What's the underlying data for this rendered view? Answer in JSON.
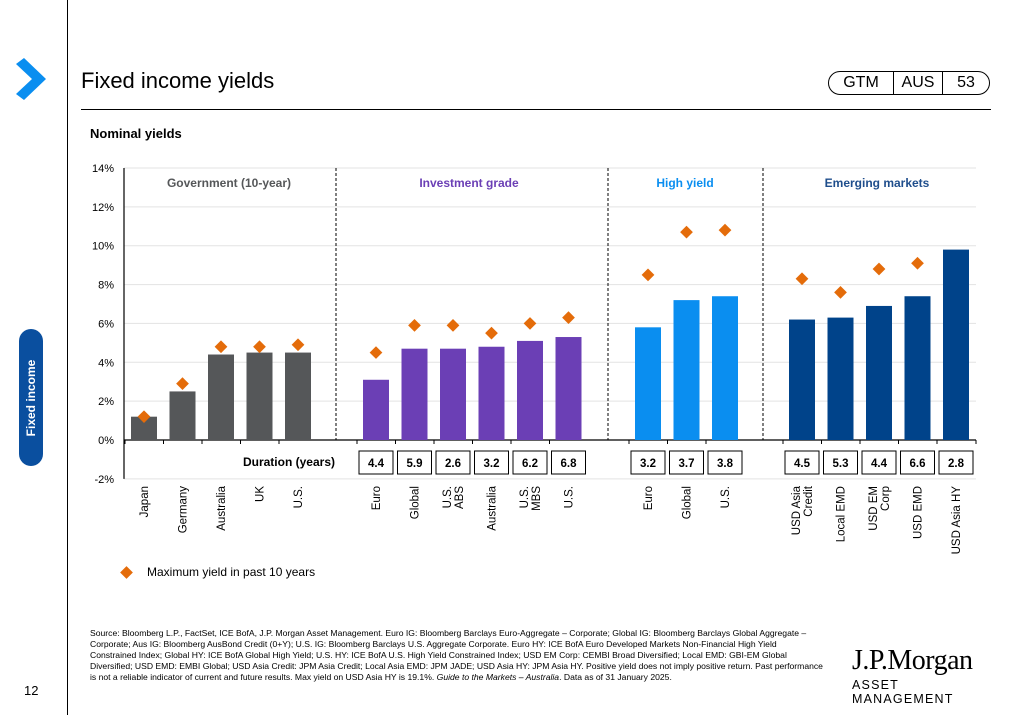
{
  "page": {
    "title": "Fixed income yields",
    "badge": [
      "GTM",
      "AUS",
      "53"
    ],
    "side_tab": "Fixed income",
    "page_number": "12",
    "subtitle": "Nominal yields",
    "logo_line1": "J.P.Morgan",
    "logo_line2": "ASSET MANAGEMENT",
    "footnote": "Source: Bloomberg L.P., FactSet, ICE BofA, J.P. Morgan Asset Management. Euro IG: Bloomberg Barclays Euro-Aggregate – Corporate; Global IG: Bloomberg Barclays Global Aggregate – Corporate; Aus IG: Bloomberg AusBond Credit (0+Y); U.S. IG: Bloomberg Barclays U.S. Aggregate Corporate. Euro HY: ICE BofA Euro Developed Markets Non-Financial High Yield Constrained Index; Global HY: ICE BofA Global High Yield; U.S. HY: ICE BofA U.S. High Yield Constrained Index; USD EM Corp: CEMBI Broad Diversified; Local EMD: GBI-EM Global Diversified; USD EMD: EMBI Global; USD Asia Credit: JPM Asia Credit; Local Asia EMD: JPM JADE; USD Asia HY: JPM Asia HY. Positive yield does not imply positive return. Past performance is not a reliable indicator of current and future results. Max yield on USD Asia HY is 19.1%.",
    "footnote_italic": "Guide to the Markets – Australia",
    "footnote_end": ". Data as of 31 January 2025."
  },
  "chart_data": {
    "type": "bar",
    "title": "Nominal yields",
    "ylabel": "",
    "ylim": [
      -2,
      14
    ],
    "yticks": [
      "-2%",
      "0%",
      "2%",
      "4%",
      "6%",
      "8%",
      "10%",
      "12%",
      "14%"
    ],
    "ytick_values": [
      -2,
      0,
      2,
      4,
      6,
      8,
      10,
      12,
      14
    ],
    "grid": true,
    "duration_label": "Duration (years)",
    "legend": {
      "marker": "diamond",
      "label": "Maximum yield in past 10 years",
      "position": "bottom-left"
    },
    "colors": {
      "government": "#555759",
      "investment_grade": "#6b3fb5",
      "high_yield": "#0a8ef0",
      "emerging_markets": "#00438a",
      "max_marker": "#e46c0a"
    },
    "groups": [
      {
        "name": "Government (10-year)",
        "color_key": "government",
        "label_color": "#555759",
        "categories": [
          "Japan",
          "Germany",
          "Australia",
          "UK",
          "U.S."
        ],
        "values": [
          1.2,
          2.5,
          4.4,
          4.5,
          4.5
        ],
        "max_yield": [
          1.2,
          2.9,
          4.8,
          4.8,
          4.9
        ],
        "duration": [
          "",
          "",
          "",
          "",
          ""
        ]
      },
      {
        "name": "Investment grade",
        "color_key": "investment_grade",
        "label_color": "#6b3fb5",
        "categories": [
          "Euro",
          "Global",
          "U.S. ABS",
          "Australia",
          "U.S. MBS",
          "U.S."
        ],
        "values": [
          3.1,
          4.7,
          4.7,
          4.8,
          5.1,
          5.3
        ],
        "max_yield": [
          4.5,
          5.9,
          5.9,
          5.5,
          6.0,
          6.3
        ],
        "duration": [
          "4.4",
          "5.9",
          "2.6",
          "3.2",
          "6.2",
          "6.8"
        ]
      },
      {
        "name": "High yield",
        "color_key": "high_yield",
        "label_color": "#0a8ef0",
        "categories": [
          "Euro",
          "Global",
          "U.S."
        ],
        "values": [
          5.8,
          7.2,
          7.4
        ],
        "max_yield": [
          8.5,
          10.7,
          10.8
        ],
        "duration": [
          "3.2",
          "3.7",
          "3.8"
        ]
      },
      {
        "name": "Emerging markets",
        "color_key": "emerging_markets",
        "label_color": "#1f4e8c",
        "categories": [
          "USD Asia Credit",
          "Local EMD",
          "USD EM Corp",
          "USD EMD",
          "USD Asia HY"
        ],
        "values": [
          6.2,
          6.3,
          6.9,
          7.4,
          9.8
        ],
        "max_yield": [
          8.3,
          7.6,
          8.8,
          9.1,
          null
        ],
        "duration": [
          "4.5",
          "5.3",
          "4.4",
          "6.6",
          "2.8"
        ]
      }
    ]
  }
}
